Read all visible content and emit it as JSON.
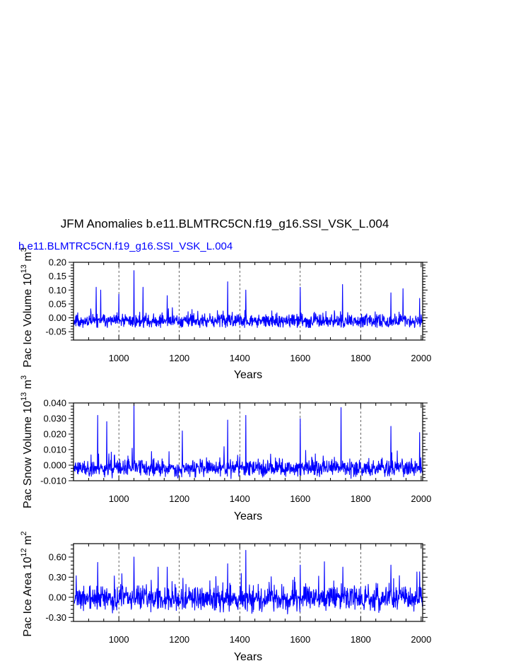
{
  "figure": {
    "title": "JFM Anomalies b.e11.BLMTRC5CN.f19_g16.SSI_VSK_L.004",
    "subtitle": "b.e11.BLMTRC5CN.f19_g16.SSI_VSK_L.004",
    "line_color": "#0000ff",
    "subtitle_color": "#0000ff"
  },
  "chart_data": [
    {
      "type": "line",
      "name": "pac-ice-volume",
      "ylabel_main": "Pac Ice Volume 10",
      "ylabel_exp": "13",
      "ylabel_unit": " m",
      "ylabel_unit_exp": "3",
      "xlabel": "Years",
      "xlim": [
        850,
        2005
      ],
      "ylim": [
        -0.08,
        0.2
      ],
      "xticks": [
        1000,
        1200,
        1400,
        1600,
        1800,
        2000
      ],
      "xtick_labels": [
        "1000",
        "1200",
        "1400",
        "1600",
        "1800",
        "2000"
      ],
      "yticks": [
        -0.05,
        0.0,
        0.05,
        0.1,
        0.15,
        0.2
      ],
      "ytick_labels": [
        "-0.05",
        "0.00",
        "0.05",
        "0.10",
        "0.15",
        "0.20"
      ],
      "dashed_gridlines_x": [
        1000,
        1200,
        1400,
        1600,
        1800
      ],
      "noise": {
        "base": -0.012,
        "sd": 0.018,
        "floor": -0.035,
        "ceil": 0.09,
        "seed": 11
      },
      "peaks": [
        {
          "x": 925,
          "y": 0.11
        },
        {
          "x": 940,
          "y": 0.1
        },
        {
          "x": 1000,
          "y": 0.085
        },
        {
          "x": 1050,
          "y": 0.17
        },
        {
          "x": 1080,
          "y": 0.11
        },
        {
          "x": 1160,
          "y": 0.08
        },
        {
          "x": 1360,
          "y": 0.13
        },
        {
          "x": 1420,
          "y": 0.1
        },
        {
          "x": 1600,
          "y": 0.11
        },
        {
          "x": 1740,
          "y": 0.12
        },
        {
          "x": 1900,
          "y": 0.09
        },
        {
          "x": 1940,
          "y": 0.105
        },
        {
          "x": 1995,
          "y": 0.07
        }
      ]
    },
    {
      "type": "line",
      "name": "pac-snow-volume",
      "ylabel_main": "Pac Snow Volume 10",
      "ylabel_exp": "13",
      "ylabel_unit": " m",
      "ylabel_unit_exp": "3",
      "xlabel": "Years",
      "xlim": [
        850,
        2005
      ],
      "ylim": [
        -0.01,
        0.04
      ],
      "xticks": [
        1000,
        1200,
        1400,
        1600,
        1800,
        2000
      ],
      "xtick_labels": [
        "1000",
        "1200",
        "1400",
        "1600",
        "1800",
        "2000"
      ],
      "yticks": [
        -0.01,
        0.0,
        0.01,
        0.02,
        0.03,
        0.04
      ],
      "ytick_labels": [
        "-0.010",
        "0.000",
        "0.010",
        "0.020",
        "0.030",
        "0.040"
      ],
      "dashed_gridlines_x": [
        1000,
        1200,
        1400,
        1600,
        1800
      ],
      "noise": {
        "base": -0.002,
        "sd": 0.004,
        "floor": -0.009,
        "ceil": 0.02,
        "seed": 23
      },
      "peaks": [
        {
          "x": 930,
          "y": 0.032
        },
        {
          "x": 960,
          "y": 0.028
        },
        {
          "x": 1050,
          "y": 0.04
        },
        {
          "x": 1210,
          "y": 0.022
        },
        {
          "x": 1360,
          "y": 0.029
        },
        {
          "x": 1420,
          "y": 0.032
        },
        {
          "x": 1600,
          "y": 0.03
        },
        {
          "x": 1735,
          "y": 0.037
        },
        {
          "x": 1900,
          "y": 0.025
        },
        {
          "x": 1995,
          "y": 0.021
        }
      ]
    },
    {
      "type": "line",
      "name": "pac-ice-area",
      "ylabel_main": "Pac Ice Area 10",
      "ylabel_exp": "12",
      "ylabel_unit": " m",
      "ylabel_unit_exp": "2",
      "xlabel": "Years",
      "xlim": [
        850,
        2005
      ],
      "ylim": [
        -0.36,
        0.8
      ],
      "xticks": [
        1000,
        1200,
        1400,
        1600,
        1800,
        2000
      ],
      "xtick_labels": [
        "1000",
        "1200",
        "1400",
        "1600",
        "1800",
        "2000"
      ],
      "yticks": [
        -0.3,
        0.0,
        0.3,
        0.6
      ],
      "ytick_labels": [
        "-0.30",
        "0.00",
        "0.30",
        "0.60"
      ],
      "dashed_gridlines_x": [
        1000,
        1200,
        1400,
        1600,
        1800
      ],
      "noise": {
        "base": -0.02,
        "sd": 0.14,
        "floor": -0.3,
        "ceil": 0.45,
        "seed": 37
      },
      "peaks": [
        {
          "x": 930,
          "y": 0.52
        },
        {
          "x": 1050,
          "y": 0.6
        },
        {
          "x": 1160,
          "y": 0.45
        },
        {
          "x": 1360,
          "y": 0.5
        },
        {
          "x": 1420,
          "y": 0.7
        },
        {
          "x": 1600,
          "y": 0.48
        },
        {
          "x": 1680,
          "y": 0.53
        },
        {
          "x": 1900,
          "y": 0.48
        },
        {
          "x": 1995,
          "y": 0.38
        }
      ]
    }
  ]
}
